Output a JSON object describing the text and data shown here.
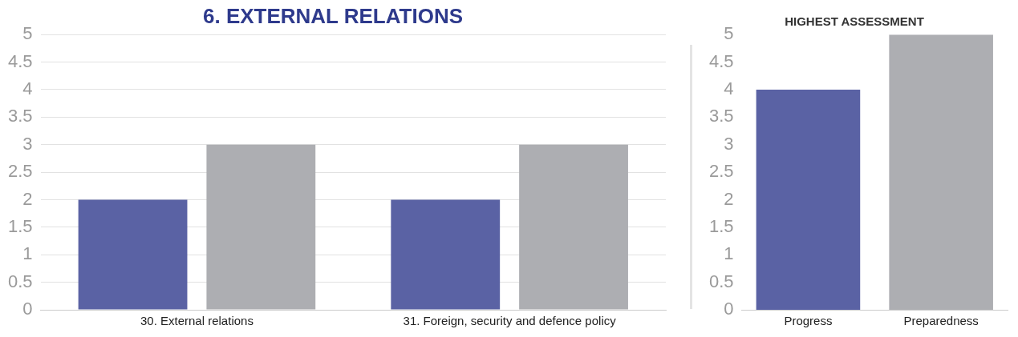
{
  "chart_data": [
    {
      "type": "bar",
      "title": "6. EXTERNAL RELATIONS",
      "categories": [
        "30. External relations",
        "31. Foreign, security and defence policy"
      ],
      "series": [
        {
          "color": "#5a62a4",
          "values": [
            2,
            2
          ]
        },
        {
          "color": "#adaeb2",
          "values": [
            3,
            3
          ]
        }
      ],
      "ylim": [
        0,
        5
      ],
      "yticks": [
        0,
        0.5,
        1,
        1.5,
        2,
        2.5,
        3,
        3.5,
        4,
        4.5,
        5
      ],
      "grid": "y"
    },
    {
      "type": "bar",
      "title": "HIGHEST ASSESSMENT",
      "categories": [
        "Progress",
        "Preparedness"
      ],
      "values": [
        4,
        5
      ],
      "colors": [
        "#5a62a4",
        "#adaeb2"
      ],
      "ylim": [
        0,
        5
      ],
      "yticks": [
        0,
        0.5,
        1,
        1.5,
        2,
        2.5,
        3,
        3.5,
        4,
        4.5,
        5
      ],
      "grid": false
    }
  ]
}
